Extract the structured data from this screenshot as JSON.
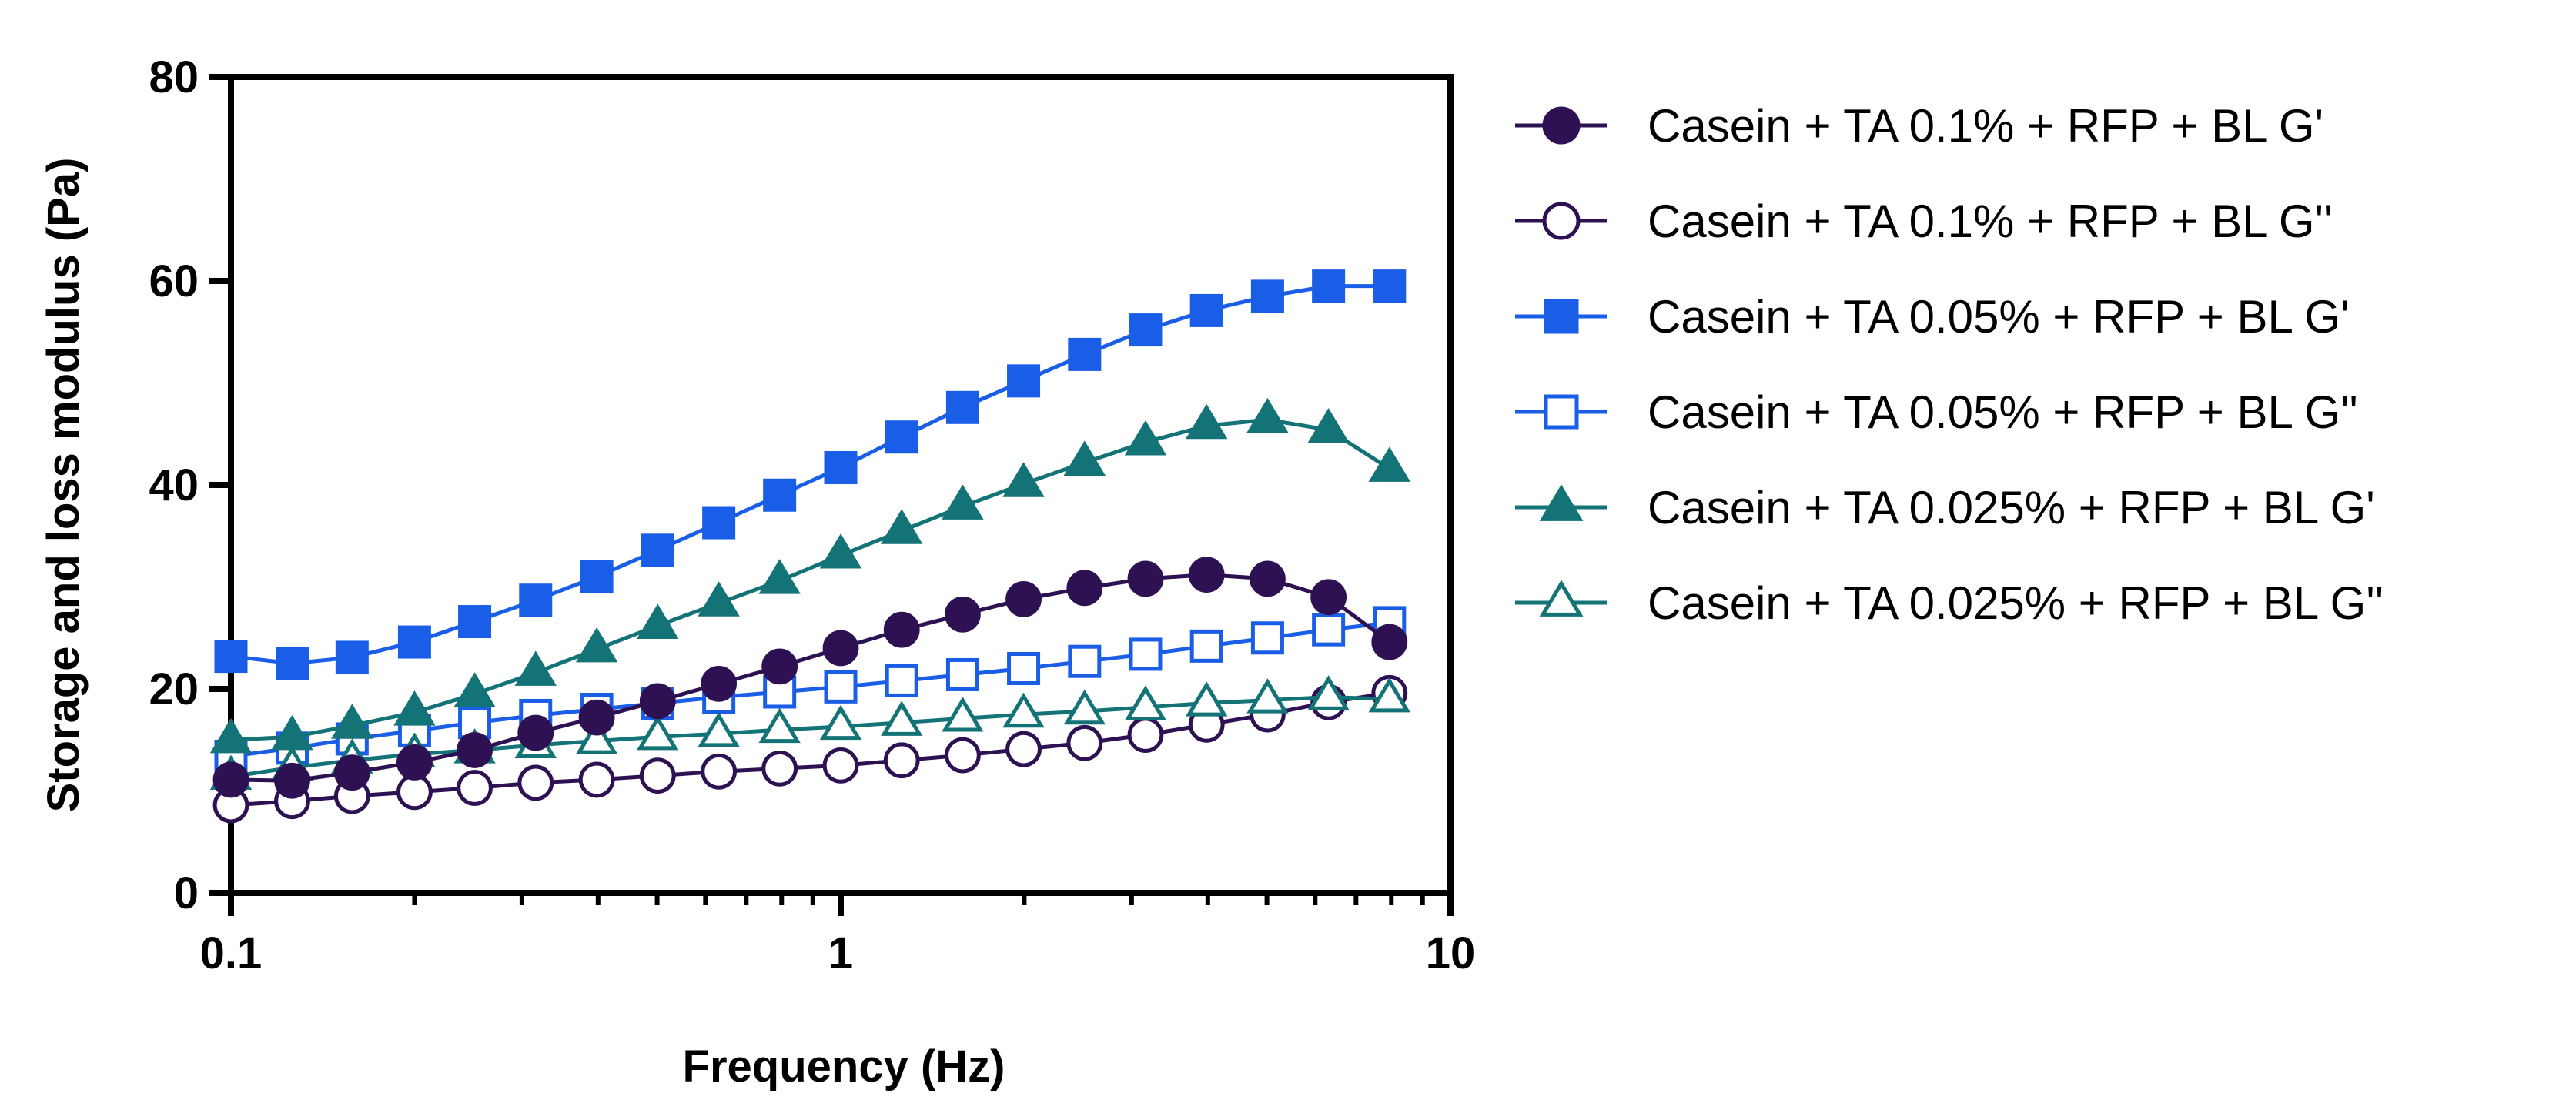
{
  "chart_data": {
    "type": "line",
    "xscale": "log",
    "xlabel": "Frequency (Hz)",
    "ylabel": "Storage and loss modulus (Pa)",
    "xlim": [
      0.1,
      10
    ],
    "ylim": [
      0,
      80
    ],
    "xticks": [
      {
        "value": 0.1,
        "label": "0.1"
      },
      {
        "value": 1,
        "label": "1"
      },
      {
        "value": 10,
        "label": "10"
      }
    ],
    "yticks": [
      {
        "value": 0,
        "label": "0"
      },
      {
        "value": 20,
        "label": "20"
      },
      {
        "value": 40,
        "label": "40"
      },
      {
        "value": 60,
        "label": "60"
      },
      {
        "value": 80,
        "label": "80"
      }
    ],
    "x": [
      0.1,
      0.126,
      0.158,
      0.2,
      0.251,
      0.316,
      0.398,
      0.501,
      0.631,
      0.794,
      1,
      1.259,
      1.585,
      1.995,
      2.512,
      3.162,
      3.981,
      5.012,
      6.31,
      7.943,
      10
    ],
    "series": [
      {
        "name": "Casein + TA 0.1% + RFP + BL G'",
        "color": "#2d1152",
        "marker": "circle",
        "fill": "filled",
        "values": [
          11.1,
          11.0,
          11.8,
          12.8,
          14.0,
          15.7,
          17.2,
          18.8,
          20.5,
          22.2,
          24.0,
          25.8,
          27.3,
          28.8,
          29.9,
          30.8,
          31.2,
          30.8,
          29.0,
          24.6,
          null
        ]
      },
      {
        "name": "Casein + TA 0.1% + RFP + BL G''",
        "color": "#2d1152",
        "marker": "circle",
        "fill": "open",
        "values": [
          8.6,
          9.0,
          9.5,
          9.9,
          10.3,
          10.8,
          11.1,
          11.5,
          11.9,
          12.2,
          12.5,
          13.0,
          13.5,
          14.1,
          14.7,
          15.5,
          16.5,
          17.5,
          18.7,
          19.6,
          null
        ]
      },
      {
        "name": "Casein + TA 0.05% + RFP + BL G'",
        "color": "#1a5ee8",
        "marker": "square",
        "fill": "filled",
        "values": [
          23.2,
          22.5,
          23.1,
          24.6,
          26.6,
          28.7,
          31.0,
          33.6,
          36.3,
          39.0,
          41.7,
          44.7,
          47.6,
          50.2,
          52.8,
          55.2,
          57.1,
          58.5,
          59.5,
          59.5,
          null
        ]
      },
      {
        "name": "Casein + TA 0.05% + RFP + BL G''",
        "color": "#1a5ee8",
        "marker": "square",
        "fill": "open",
        "values": [
          13.4,
          14.2,
          15.1,
          15.9,
          16.7,
          17.4,
          18.0,
          18.6,
          19.2,
          19.7,
          20.2,
          20.8,
          21.4,
          22.0,
          22.7,
          23.4,
          24.2,
          25.0,
          25.8,
          26.5,
          null
        ]
      },
      {
        "name": "Casein + TA 0.025% + RFP + BL G'",
        "color": "#137377",
        "marker": "triangle",
        "fill": "filled",
        "values": [
          15.0,
          15.3,
          16.4,
          17.7,
          19.5,
          21.6,
          23.9,
          26.2,
          28.4,
          30.6,
          33.1,
          35.5,
          37.9,
          40.1,
          42.2,
          44.2,
          45.8,
          46.4,
          45.4,
          41.6,
          null
        ]
      },
      {
        "name": "Casein + TA 0.025% + RFP + BL G''",
        "color": "#137377",
        "marker": "triangle",
        "fill": "open",
        "values": [
          11.4,
          12.3,
          13.0,
          13.6,
          14.0,
          14.5,
          14.9,
          15.3,
          15.6,
          16.0,
          16.3,
          16.7,
          17.1,
          17.5,
          17.8,
          18.2,
          18.6,
          18.9,
          19.2,
          19.0,
          null
        ]
      }
    ],
    "legend_position": "right"
  }
}
